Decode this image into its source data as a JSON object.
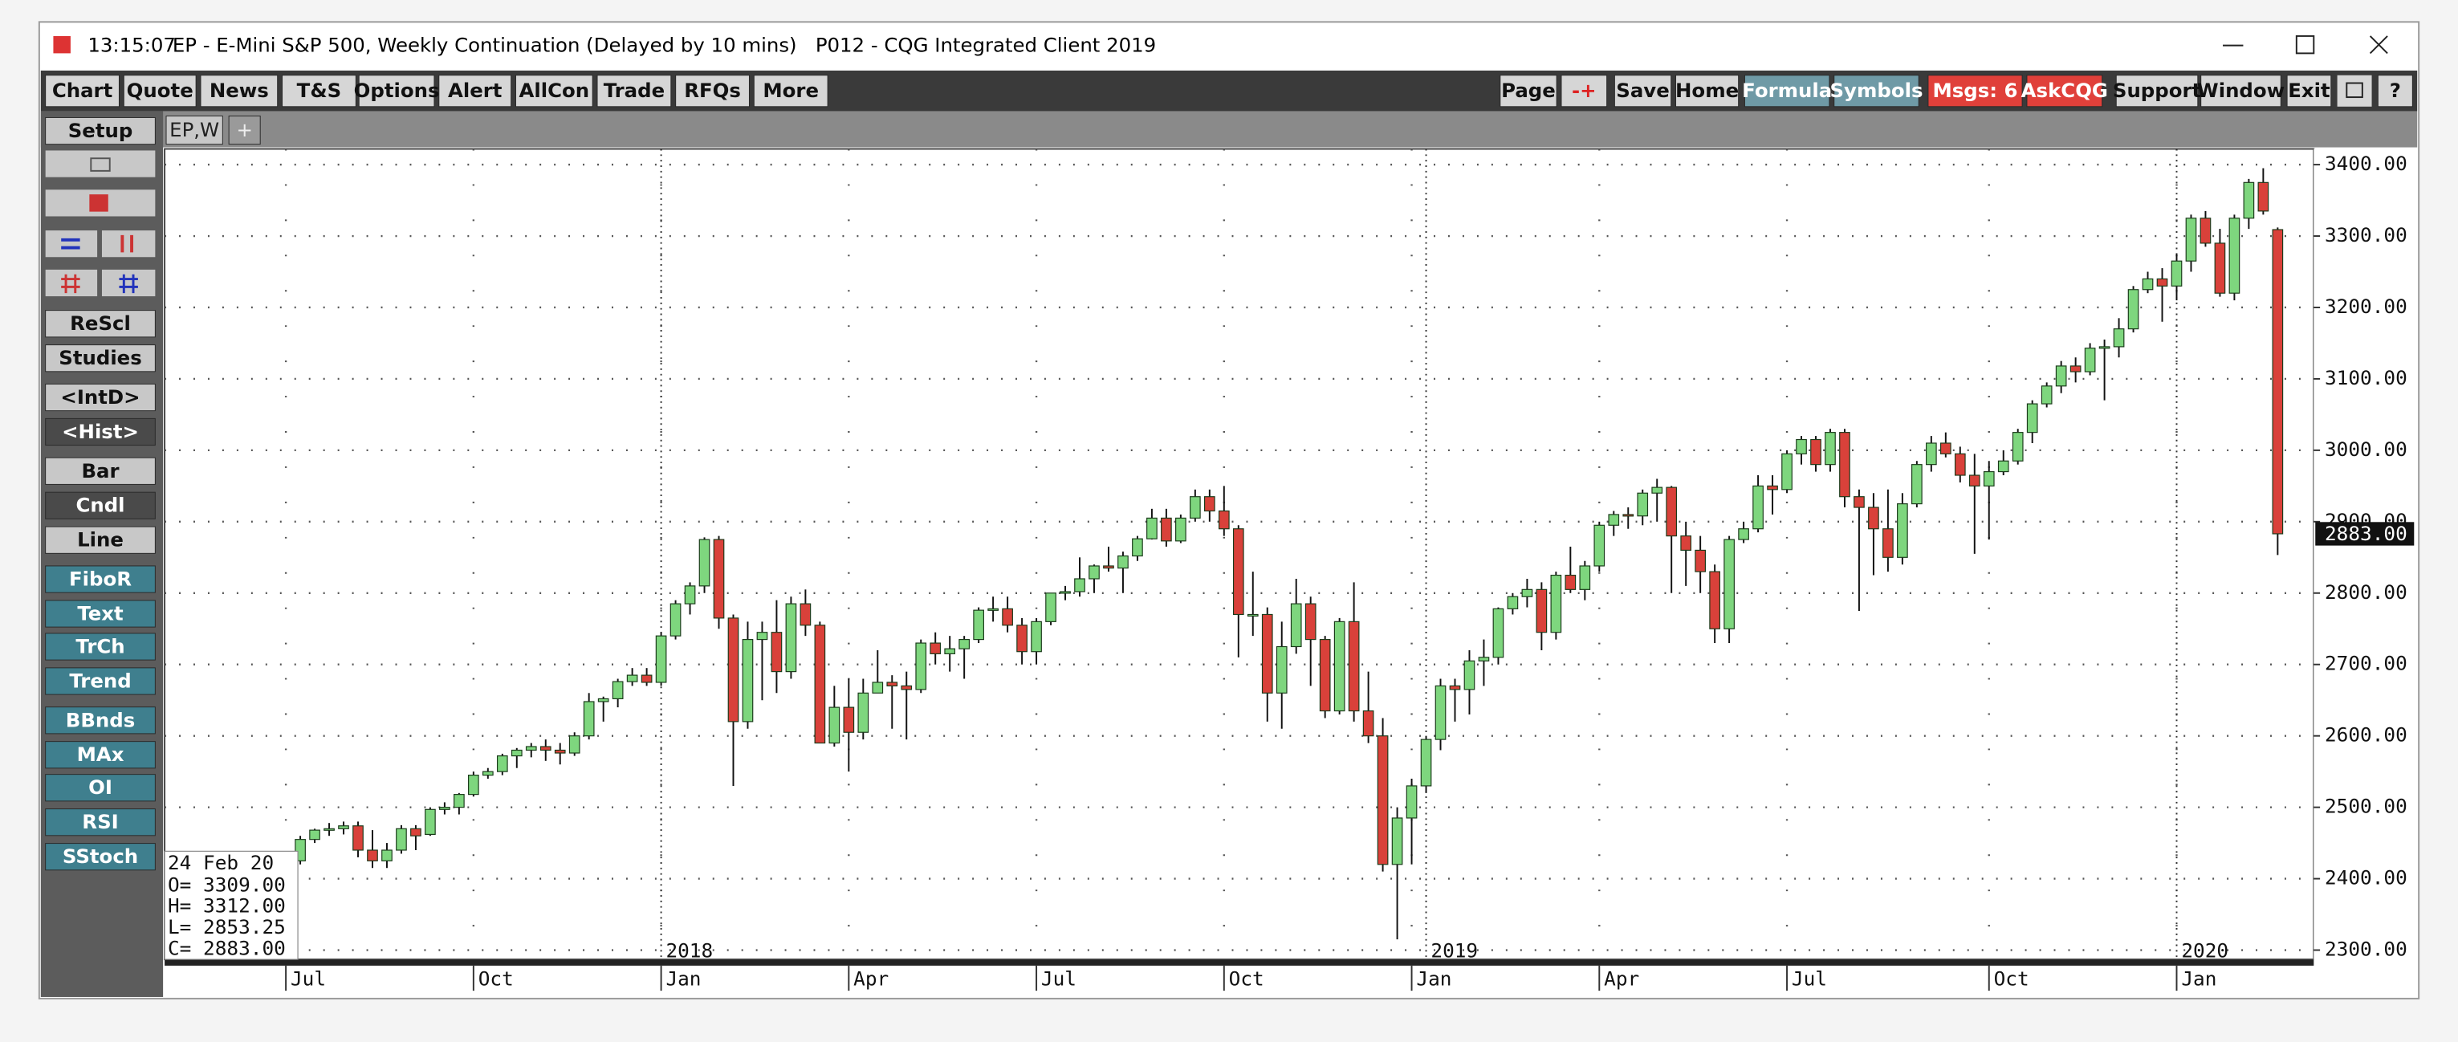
{
  "window": {
    "time": "13:15:07",
    "title": "EP - E-Mini S&P 500, Weekly Continuation (Delayed by 10 mins)   P012 - CQG Integrated Client 2019"
  },
  "toolbar": {
    "left": [
      "Chart",
      "Quote",
      "News",
      "T&S",
      "Options",
      "Alert",
      "AllCon",
      "Trade",
      "RFQs",
      "More"
    ],
    "right": [
      "Page",
      "-+",
      "Save",
      "Home",
      "Formula",
      "Symbols",
      "Msgs: 6",
      "AskCQG",
      "Support",
      "Window",
      "Exit",
      "?"
    ]
  },
  "tabs": [
    "EP,W",
    "+"
  ],
  "sidebar": [
    "Setup",
    "ReScl",
    "Studies",
    "<IntD>",
    "<Hist>",
    "Bar",
    "Cndl",
    "Line",
    "FiboR",
    "Text",
    "TrCh",
    "Trend",
    "BBnds",
    "MAx",
    "OI",
    "RSI",
    "SStoch"
  ],
  "chart_data": {
    "type": "candlestick",
    "up_color": "#7ed67e",
    "down_color": "#d9413a",
    "grid": true,
    "open": [
      2420,
      2425,
      2455,
      2468,
      2470,
      2474,
      2440,
      2425,
      2440,
      2470,
      2462,
      2497,
      2500,
      2518,
      2545,
      2550,
      2572,
      2580,
      2585,
      2580,
      2576,
      2600,
      2648,
      2652,
      2676,
      2685,
      2675,
      2740,
      2785,
      2810,
      2875,
      2765,
      2620,
      2735,
      2745,
      2690,
      2785,
      2755,
      2590,
      2640,
      2605,
      2660,
      2675,
      2670,
      2665,
      2730,
      2715,
      2722,
      2735,
      2776,
      2778,
      2755,
      2718,
      2760,
      2800,
      2802,
      2820,
      2838,
      2835,
      2852,
      2876,
      2905,
      2873,
      2905,
      2935,
      2915,
      2890,
      2770,
      2770,
      2660,
      2725,
      2785,
      2735,
      2635,
      2760,
      2635,
      2600,
      2420,
      2485,
      2530,
      2595,
      2670,
      2665,
      2705,
      2710,
      2778,
      2795,
      2805,
      2745,
      2825,
      2805,
      2838,
      2895,
      2910,
      2908,
      2940,
      2948,
      2880,
      2860,
      2830,
      2750,
      2875,
      2890,
      2950,
      2945,
      2995,
      3015,
      2980,
      3025,
      2935,
      2920,
      2890,
      2850,
      2925,
      2980,
      3010,
      2995,
      2965,
      2950,
      2970,
      2985,
      3025,
      3065,
      3090,
      3118,
      3110,
      3143,
      3145,
      3170,
      3225,
      3240,
      3230,
      3265,
      3325,
      3290,
      3220,
      3325,
      3375,
      3309
    ],
    "high": [
      2430,
      2460,
      2470,
      2478,
      2480,
      2480,
      2468,
      2450,
      2475,
      2475,
      2500,
      2507,
      2520,
      2550,
      2555,
      2575,
      2583,
      2590,
      2595,
      2590,
      2605,
      2660,
      2655,
      2680,
      2695,
      2695,
      2745,
      2790,
      2815,
      2878,
      2880,
      2770,
      2760,
      2760,
      2790,
      2795,
      2805,
      2760,
      2670,
      2680,
      2680,
      2720,
      2685,
      2690,
      2735,
      2745,
      2740,
      2740,
      2780,
      2795,
      2795,
      2765,
      2765,
      2800,
      2810,
      2850,
      2840,
      2865,
      2858,
      2880,
      2918,
      2918,
      2910,
      2945,
      2945,
      2950,
      2895,
      2830,
      2780,
      2760,
      2820,
      2795,
      2740,
      2765,
      2815,
      2690,
      2625,
      2500,
      2540,
      2600,
      2680,
      2680,
      2720,
      2735,
      2780,
      2800,
      2820,
      2815,
      2830,
      2865,
      2845,
      2900,
      2915,
      2920,
      2945,
      2960,
      2950,
      2900,
      2880,
      2840,
      2880,
      2900,
      2965,
      2965,
      3000,
      3020,
      3020,
      3030,
      3030,
      2945,
      2940,
      2945,
      2940,
      2985,
      3020,
      3025,
      3005,
      2995,
      2985,
      3000,
      3030,
      3070,
      3095,
      3125,
      3130,
      3150,
      3155,
      3185,
      3230,
      3250,
      3255,
      3275,
      3330,
      3335,
      3310,
      3330,
      3380,
      3395,
      3312
    ],
    "low": [
      2405,
      2420,
      2450,
      2460,
      2462,
      2430,
      2415,
      2415,
      2435,
      2440,
      2460,
      2490,
      2490,
      2515,
      2540,
      2545,
      2555,
      2570,
      2565,
      2560,
      2572,
      2595,
      2620,
      2640,
      2670,
      2670,
      2670,
      2735,
      2770,
      2800,
      2750,
      2530,
      2610,
      2650,
      2660,
      2680,
      2740,
      2590,
      2585,
      2550,
      2595,
      2660,
      2610,
      2595,
      2660,
      2700,
      2690,
      2680,
      2730,
      2760,
      2745,
      2700,
      2700,
      2755,
      2790,
      2795,
      2800,
      2830,
      2800,
      2845,
      2875,
      2865,
      2870,
      2900,
      2900,
      2880,
      2710,
      2740,
      2620,
      2610,
      2715,
      2670,
      2625,
      2630,
      2620,
      2590,
      2410,
      2315,
      2420,
      2520,
      2580,
      2620,
      2630,
      2670,
      2700,
      2770,
      2780,
      2720,
      2735,
      2800,
      2790,
      2830,
      2880,
      2890,
      2895,
      2900,
      2800,
      2810,
      2800,
      2730,
      2730,
      2870,
      2885,
      2910,
      2940,
      2980,
      2970,
      2970,
      2920,
      2775,
      2825,
      2830,
      2840,
      2920,
      2970,
      2990,
      2955,
      2855,
      2875,
      2965,
      2980,
      3010,
      3060,
      3080,
      3095,
      3105,
      3070,
      3130,
      3165,
      3220,
      3180,
      3210,
      3250,
      3285,
      3215,
      3210,
      3310,
      3330,
      2853.25
    ],
    "close": [
      2425,
      2455,
      2468,
      2470,
      2474,
      2440,
      2425,
      2440,
      2470,
      2460,
      2497,
      2500,
      2518,
      2545,
      2550,
      2572,
      2580,
      2585,
      2580,
      2576,
      2600,
      2648,
      2652,
      2676,
      2685,
      2675,
      2740,
      2785,
      2810,
      2875,
      2765,
      2620,
      2735,
      2745,
      2690,
      2785,
      2755,
      2590,
      2640,
      2605,
      2660,
      2675,
      2670,
      2665,
      2730,
      2715,
      2722,
      2735,
      2776,
      2778,
      2755,
      2718,
      2760,
      2800,
      2802,
      2820,
      2838,
      2835,
      2852,
      2876,
      2905,
      2873,
      2905,
      2935,
      2915,
      2890,
      2770,
      2770,
      2660,
      2725,
      2785,
      2735,
      2635,
      2760,
      2635,
      2600,
      2420,
      2485,
      2530,
      2595,
      2670,
      2665,
      2705,
      2710,
      2778,
      2795,
      2805,
      2745,
      2825,
      2805,
      2838,
      2895,
      2910,
      2908,
      2940,
      2948,
      2880,
      2860,
      2830,
      2750,
      2875,
      2890,
      2950,
      2945,
      2995,
      3015,
      2980,
      3025,
      2935,
      2920,
      2890,
      2850,
      2925,
      2980,
      3010,
      2995,
      2965,
      2950,
      2970,
      2985,
      3025,
      3065,
      3090,
      3118,
      3110,
      3143,
      3145,
      3170,
      3225,
      3240,
      3230,
      3265,
      3325,
      3290,
      3220,
      3325,
      3375,
      3335,
      2883
    ],
    "xlim": [
      -8.4,
      140.5
    ],
    "xticks": [
      {
        "value": 0,
        "label": "Jul"
      },
      {
        "value": 13,
        "label": "Oct"
      },
      {
        "value": 26,
        "label": "Jan"
      },
      {
        "value": 39,
        "label": "Apr"
      },
      {
        "value": 52,
        "label": "Jul"
      },
      {
        "value": 65,
        "label": "Oct"
      },
      {
        "value": 78,
        "label": "Jan"
      },
      {
        "value": 91,
        "label": "Apr"
      },
      {
        "value": 104,
        "label": "Jul"
      },
      {
        "value": 118,
        "label": "Oct"
      },
      {
        "value": 131,
        "label": "Jan"
      }
    ],
    "year_marks": [
      {
        "value": 26,
        "label": "2018"
      },
      {
        "value": 79,
        "label": "2019"
      },
      {
        "value": 131,
        "label": "2020"
      }
    ],
    "ylim": [
      2287,
      3422
    ],
    "yticks": [
      {
        "value": 2300,
        "label": "2300.00"
      },
      {
        "value": 2400,
        "label": "2400.00"
      },
      {
        "value": 2500,
        "label": "2500.00"
      },
      {
        "value": 2600,
        "label": "2600.00"
      },
      {
        "value": 2700,
        "label": "2700.00"
      },
      {
        "value": 2800,
        "label": "2800.00"
      },
      {
        "value": 2900,
        "label": "2900.00"
      },
      {
        "value": 3000,
        "label": "3000.00"
      },
      {
        "value": 3100,
        "label": "3100.00"
      },
      {
        "value": 3200,
        "label": "3200.00"
      },
      {
        "value": 3300,
        "label": "3300.00"
      },
      {
        "value": 3400,
        "label": "3400.00"
      }
    ],
    "last_label": "2883.00",
    "readout": {
      "date": "24 Feb 20",
      "labels": [
        "O= 3309.00",
        "H= 3312.00",
        "L= 2853.25",
        "C= 2883.00"
      ]
    }
  }
}
